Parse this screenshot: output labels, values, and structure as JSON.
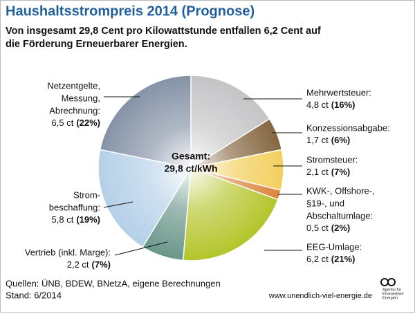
{
  "chart_data": {
    "type": "pie",
    "title": "Haushaltsstrompreis 2014 (Prognose)",
    "subtitle": [
      "Von insgesamt 29,8 Cent pro Kilowattstunde entfallen 6,2 Cent auf",
      "die Förderung Erneuerbarer Energien."
    ],
    "center_label": [
      "Gesamt:",
      "29,8 ct/kWh"
    ],
    "categories": [
      [
        "Mehrwertsteuer:"
      ],
      [
        "Konzessionsabgabe:"
      ],
      [
        "Stromsteuer:"
      ],
      [
        "KWK-, Offshore-,",
        "§19-, und",
        "Abschaltumlage:"
      ],
      [
        "EEG-Umlage:"
      ],
      [
        "Vertrieb (inkl. Marge):"
      ],
      [
        "Strom-",
        "beschaffung:"
      ],
      [
        "Netzentgelte,",
        "Messung,",
        "Abrechnung:"
      ]
    ],
    "values": [
      4.8,
      1.7,
      2.1,
      0.5,
      6.2,
      2.2,
      5.8,
      6.5
    ],
    "value_labels": [
      "4,8 ct",
      "1,7 ct",
      "2,1 ct",
      "0,5 ct",
      "6,2 ct",
      "2,2 ct",
      "5,8 ct",
      "6,5 ct"
    ],
    "shares": [
      16,
      6,
      7,
      2,
      21,
      7,
      19,
      22
    ],
    "share_labels": [
      "(16%)",
      "(6%)",
      "(7%)",
      "(2%)",
      "(21%)",
      "(7%)",
      "(19%)",
      "(22%)"
    ],
    "colors": [
      "#c4c4c6",
      "#856640",
      "#f3cf5c",
      "#dc843a",
      "#b3c52a",
      "#6a968a",
      "#b4d0e8",
      "#8592a6"
    ],
    "sources": [
      "Quellen:  ÜNB, BDEW, BNetzA, eigene Berechnungen",
      "Stand: 6/2014"
    ],
    "website": "www.unendlich-viel-energie.de",
    "logo_text": [
      "Agentur für",
      "Erneuerbare",
      "Energien"
    ]
  }
}
